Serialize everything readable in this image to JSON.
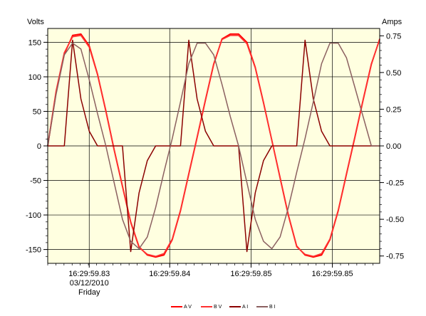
{
  "chart_data": {
    "type": "line",
    "title": "",
    "left_axis_label": "Volts",
    "right_axis_label": "Amps",
    "left_ylim": [
      -170,
      170
    ],
    "right_ylim": [
      -0.8,
      0.8
    ],
    "left_ticks": [
      150,
      100,
      50,
      0,
      -50,
      -100,
      -150
    ],
    "right_ticks": [
      "0.75",
      "0.50",
      "0.25",
      "0.00",
      "-0.25",
      "-0.50",
      "-0.75"
    ],
    "right_tick_values": [
      0.75,
      0.5,
      0.25,
      0.0,
      -0.25,
      -0.5,
      -0.75
    ],
    "x_ticks": [
      {
        "label": "16:29:59.83",
        "label2": "03/12/2010",
        "label3": "Friday"
      },
      {
        "label": "16:29:59.84"
      },
      {
        "label": "16:29:59.85"
      },
      {
        "label": "16:29:59.85"
      }
    ],
    "grid": true,
    "background": "#ffffe0",
    "legend_position": "bottom-right",
    "series": [
      {
        "name": "A V",
        "axis": "left",
        "color": "#ff0000",
        "x": [
          0,
          1,
          2,
          3,
          4,
          5,
          6,
          7,
          8,
          9,
          10,
          11,
          12,
          13,
          14,
          15,
          16,
          17,
          18,
          19,
          20,
          21,
          22,
          23,
          24,
          25,
          26,
          27,
          28,
          29,
          30,
          31,
          32,
          33,
          34,
          35,
          36,
          37,
          38,
          39,
          40
        ],
        "values": [
          0,
          77,
          133,
          160,
          162,
          145,
          104,
          51,
          -5,
          -58,
          -110,
          -146,
          -158,
          -161,
          -158,
          -136,
          -94,
          -41,
          12,
          66,
          118,
          155,
          162,
          162,
          150,
          114,
          63,
          8,
          -46,
          -100,
          -145,
          -158,
          -161,
          -158,
          -136,
          -94,
          -41,
          12,
          66,
          118,
          155
        ]
      },
      {
        "name": "B V",
        "axis": "left",
        "color": "#ff3030",
        "x": [
          0,
          1,
          2,
          3,
          4,
          5,
          6,
          7,
          8,
          9,
          10,
          11,
          12,
          13,
          14,
          15,
          16,
          17,
          18,
          19,
          20,
          21,
          22,
          23,
          24,
          25,
          26,
          27,
          28,
          29,
          30,
          31,
          32,
          33,
          34,
          35,
          36,
          37,
          38,
          39,
          40
        ],
        "values": [
          0,
          79,
          135,
          158,
          160,
          143,
          103,
          50,
          -6,
          -59,
          -111,
          -147,
          -157,
          -160,
          -156,
          -135,
          -93,
          -40,
          13,
          67,
          119,
          154,
          160,
          160,
          148,
          113,
          62,
          8,
          -47,
          -101,
          -146,
          -157,
          -160,
          -156,
          -135,
          -93,
          -40,
          13,
          67,
          119,
          154
        ]
      },
      {
        "name": "A I",
        "axis": "right",
        "color": "#8b0000",
        "x": [
          0,
          1,
          2,
          3,
          4,
          5,
          6,
          7,
          8,
          9,
          10,
          11,
          12,
          13,
          14,
          15,
          16,
          17,
          18,
          19,
          20,
          21,
          22,
          23,
          24,
          25,
          26,
          27,
          28,
          29,
          30,
          31,
          32,
          33,
          34,
          35,
          36,
          37,
          38,
          39,
          40
        ],
        "values": [
          0,
          0,
          0,
          0.72,
          0.32,
          0.1,
          0,
          0,
          0,
          0,
          -0.72,
          -0.32,
          -0.1,
          0,
          0,
          0,
          0,
          0.72,
          0.32,
          0.1,
          0,
          0,
          0,
          0,
          -0.72,
          -0.32,
          -0.1,
          0,
          0,
          0,
          0,
          0.72,
          0.32,
          0.1,
          0,
          0,
          0,
          0,
          0,
          0,
          0
        ]
      },
      {
        "name": "B I",
        "axis": "right",
        "color": "#8b6060",
        "x": [
          0,
          1,
          2,
          3,
          4,
          5,
          6,
          7,
          8,
          9,
          10,
          11,
          12,
          13,
          14,
          15,
          16,
          17,
          18,
          19,
          20,
          21,
          22,
          23,
          24,
          25,
          26,
          27,
          28,
          29,
          30,
          31,
          32,
          33,
          34,
          35,
          36,
          37,
          38,
          39,
          40
        ],
        "values": [
          0,
          0.35,
          0.62,
          0.7,
          0.66,
          0.45,
          0.22,
          0,
          -0.25,
          -0.5,
          -0.65,
          -0.7,
          -0.62,
          -0.42,
          -0.18,
          0.05,
          0.3,
          0.56,
          0.7,
          0.7,
          0.62,
          0.42,
          0.2,
          0,
          -0.25,
          -0.5,
          -0.65,
          -0.7,
          -0.62,
          -0.42,
          -0.18,
          0.05,
          0.3,
          0.56,
          0.7,
          0.7,
          0.6,
          0.4,
          0.2,
          0,
          0
        ]
      }
    ]
  }
}
